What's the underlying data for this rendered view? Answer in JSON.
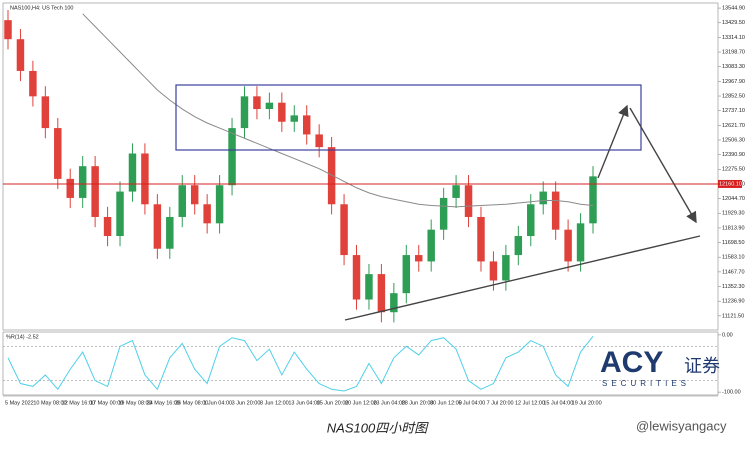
{
  "chart_data": {
    "type": "candlestick",
    "title": "NAS100,H4: US Tech 100",
    "caption": "NAS100四小时图",
    "watermark": "@lewisyangacy",
    "brand": {
      "name": "ACY",
      "suffix": "证券",
      "sub": "SECURITIES"
    },
    "up_color": "#2f9e55",
    "down_color": "#e0413a",
    "open": [
      13450,
      13300,
      13050,
      12850,
      12600,
      12200,
      12050,
      12300,
      11900,
      11750,
      12100,
      12400,
      12000,
      11650,
      11900,
      12150,
      12000,
      11850,
      12150,
      12600,
      12850,
      12750,
      12800,
      12650,
      12700,
      12550,
      12450,
      12000,
      11600,
      11250,
      11450,
      11150,
      11300,
      11600,
      11550,
      11800,
      12050,
      12150,
      11900,
      11550,
      11400,
      11600,
      11750,
      12000,
      12100,
      11800,
      11550,
      11850
    ],
    "high": [
      13530,
      13380,
      13130,
      12930,
      12680,
      12280,
      12380,
      12380,
      11980,
      12180,
      12480,
      12480,
      12080,
      11980,
      12230,
      12230,
      12080,
      12230,
      12680,
      12930,
      12930,
      12880,
      12880,
      12780,
      12780,
      12630,
      12530,
      12080,
      11680,
      11530,
      11530,
      11380,
      11680,
      11680,
      11880,
      12130,
      12230,
      12230,
      11980,
      11630,
      11680,
      11830,
      12080,
      12180,
      12180,
      11880,
      11930,
      12300
    ],
    "low": [
      13220,
      12970,
      12770,
      12520,
      12120,
      11970,
      11970,
      11820,
      11670,
      11670,
      12020,
      11920,
      11570,
      11570,
      11820,
      11920,
      11770,
      11770,
      12070,
      12520,
      12670,
      12670,
      12570,
      12570,
      12470,
      12370,
      11920,
      11520,
      11170,
      11170,
      11070,
      11070,
      11220,
      11470,
      11470,
      11720,
      11970,
      11820,
      11470,
      11320,
      11320,
      11520,
      11670,
      11920,
      11720,
      11470,
      11470,
      11770
    ],
    "close": [
      13300,
      13050,
      12850,
      12600,
      12200,
      12050,
      12300,
      11900,
      11750,
      12100,
      12400,
      12000,
      11650,
      11900,
      12150,
      12000,
      11850,
      12150,
      12600,
      12850,
      12750,
      12800,
      12650,
      12700,
      12550,
      12450,
      12000,
      11600,
      11250,
      11450,
      11150,
      11300,
      11600,
      11550,
      11800,
      12050,
      12150,
      11900,
      11550,
      11400,
      11600,
      11750,
      12000,
      12100,
      11800,
      11550,
      11850,
      12220
    ],
    "ma": {
      "color": "#8a8a8a",
      "values": [
        null,
        null,
        null,
        null,
        null,
        null,
        13500,
        13400,
        13300,
        13200,
        13100,
        13000,
        12900,
        12820,
        12750,
        12690,
        12640,
        12600,
        12560,
        12520,
        12480,
        12440,
        12400,
        12360,
        12320,
        12280,
        12230,
        12180,
        12130,
        12090,
        12060,
        12040,
        12020,
        12000,
        11990,
        11985,
        11980,
        11985,
        11990,
        11995,
        12000,
        12010,
        12020,
        12030,
        12030,
        12020,
        12000,
        11990
      ]
    },
    "current_price": {
      "value": 12160.1,
      "label": "12160.10",
      "color": "#d62020"
    },
    "ylim": [
      11010,
      13585
    ],
    "yticks": [
      {
        "value": 11121.5,
        "label": "11121.50"
      },
      {
        "value": 11236.9,
        "label": "11236.90"
      },
      {
        "value": 11352.3,
        "label": "11352.30"
      },
      {
        "value": 11467.7,
        "label": "11467.70"
      },
      {
        "value": 11583.1,
        "label": "11583.10"
      },
      {
        "value": 11698.5,
        "label": "11698.50"
      },
      {
        "value": 11813.9,
        "label": "11813.90"
      },
      {
        "value": 11929.3,
        "label": "11929.30"
      },
      {
        "value": 12044.7,
        "label": "12044.70"
      },
      {
        "value": 12160.1,
        "label": "12160.10"
      },
      {
        "value": 12275.5,
        "label": "12275.50"
      },
      {
        "value": 12390.9,
        "label": "12390.90"
      },
      {
        "value": 12506.3,
        "label": "12506.30"
      },
      {
        "value": 12621.7,
        "label": "12621.70"
      },
      {
        "value": 12737.1,
        "label": "12737.10"
      },
      {
        "value": 12852.5,
        "label": "12852.50"
      },
      {
        "value": 12967.9,
        "label": "12967.90"
      },
      {
        "value": 13083.3,
        "label": "13083.30"
      },
      {
        "value": 13198.7,
        "label": "13198.70"
      },
      {
        "value": 13314.1,
        "label": "13314.10"
      },
      {
        "value": 13429.5,
        "label": "13429.50"
      },
      {
        "value": 13544.9,
        "label": "13544.90"
      }
    ],
    "time_labels": [
      "5 May 2022",
      "10 May 08:00",
      "12 May 16:00",
      "17 May 00:00",
      "19 May 08:00",
      "24 May 16:00",
      "26 May 08:00",
      "1 Jun 04:00",
      "3 Jun 20:00",
      "8 Jun 12:00",
      "13 Jun 04:00",
      "15 Jun 20:00",
      "20 Jun 12:00",
      "23 Jun 04:00",
      "28 Jun 20:00",
      "30 Jun 12:00",
      "5 Jul 04:00",
      "7 Jul 20:00",
      "12 Jul 12:00",
      "15 Jul 04:00",
      "19 Jul 20:00"
    ],
    "indicator": {
      "name": "%R(14) -2.52",
      "color": "#4fd0e8",
      "values": [
        -40,
        -85,
        -90,
        -70,
        -95,
        -60,
        -30,
        -80,
        -90,
        -20,
        -10,
        -70,
        -95,
        -40,
        -15,
        -60,
        -85,
        -20,
        -5,
        -10,
        -45,
        -25,
        -70,
        -30,
        -60,
        -85,
        -95,
        -98,
        -90,
        -50,
        -85,
        -40,
        -20,
        -35,
        -10,
        -5,
        -25,
        -80,
        -95,
        -85,
        -40,
        -30,
        -10,
        -20,
        -70,
        -90,
        -30,
        -2.52
      ],
      "ylim": [
        -105,
        5
      ],
      "yticks": [
        {
          "value": 0,
          "label": "0.00"
        },
        {
          "value": -100,
          "label": "-100.00"
        }
      ],
      "levels": [
        -20,
        -80
      ]
    }
  }
}
